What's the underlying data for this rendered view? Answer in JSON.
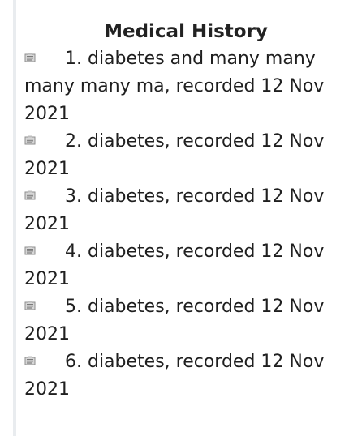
{
  "panel": {
    "title": "Medical History"
  },
  "icon": "record-thumbnail-icon",
  "history": [
    {
      "text": "1. diabetes and many many many many ma, recorded 12 Nov 2021"
    },
    {
      "text": "2. diabetes, recorded 12 Nov 2021"
    },
    {
      "text": "3. diabetes, recorded 12 Nov 2021"
    },
    {
      "text": "4. diabetes, recorded 12 Nov 2021"
    },
    {
      "text": "5. diabetes, recorded 12 Nov 2021"
    },
    {
      "text": "6. diabetes, recorded 12 Nov 2021"
    }
  ]
}
